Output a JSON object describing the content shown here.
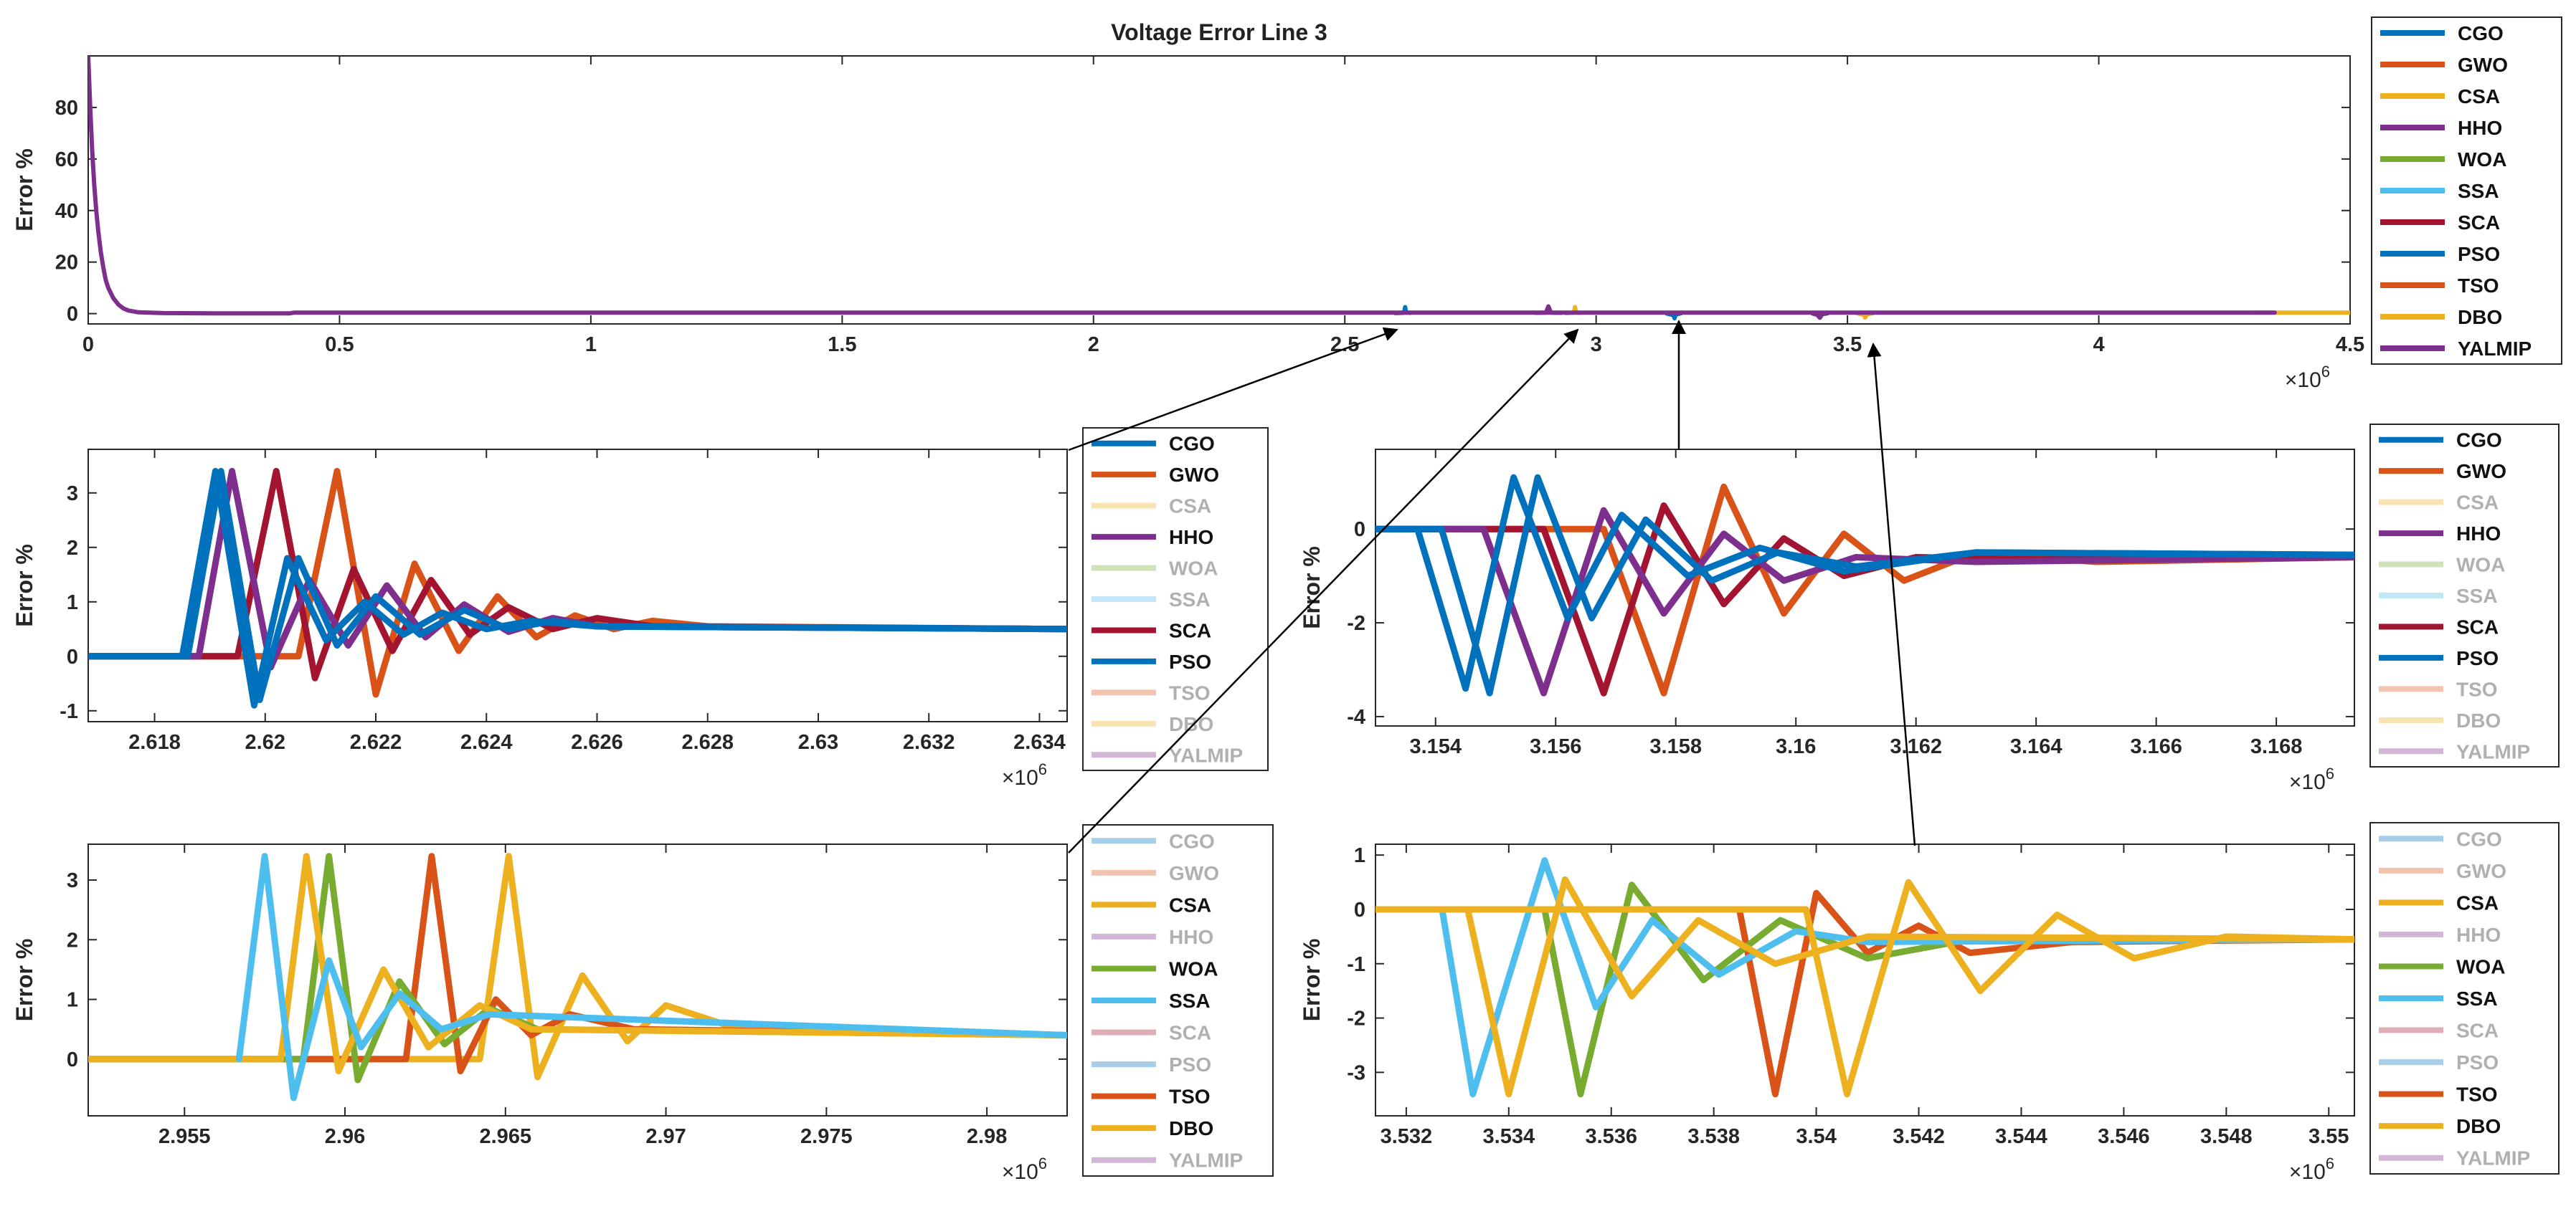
{
  "colors": {
    "CGO": "#0072BD",
    "GWO": "#D95319",
    "CSA": "#EDB120",
    "HHO": "#7E2F8E",
    "WOA": "#77AC30",
    "SSA": "#4DBEEE",
    "SCA": "#A2142F",
    "PSO": "#0072BD",
    "TSO": "#D95319",
    "DBO": "#EDB120",
    "YALMIP": "#7E2F8E"
  },
  "chart_data": [
    {
      "id": "main",
      "type": "line",
      "title": "Voltage Error Line 3",
      "xlabel": "",
      "ylabel": "Error %",
      "x_multiplier": "×10^6",
      "xlim": [
        0,
        4.5
      ],
      "ylim": [
        -4,
        100
      ],
      "xticks": [
        0,
        0.5,
        1,
        1.5,
        2,
        2.5,
        3,
        3.5,
        4,
        4.5
      ],
      "xtick_labels": [
        "0",
        "0.5",
        "1",
        "1.5",
        "2",
        "2.5",
        "3",
        "3.5",
        "4",
        "4.5"
      ],
      "yticks": [
        0,
        20,
        40,
        60,
        80
      ],
      "ytick_labels": [
        "0",
        "20",
        "40",
        "60",
        "80"
      ],
      "legend": [
        "CGO",
        "GWO",
        "CSA",
        "HHO",
        "WOA",
        "SSA",
        "SCA",
        "PSO",
        "TSO",
        "DBO",
        "YALMIP"
      ],
      "legend_dim": [],
      "legend_placement": "outside-right",
      "series": [
        {
          "name": "DBO",
          "x": [
            4.3,
            4.5
          ],
          "y": [
            0.4,
            0.4
          ]
        },
        {
          "name": "CGO",
          "x": [
            2.6,
            2.618,
            2.62,
            2.622,
            2.63
          ],
          "y": [
            0.2,
            0.3,
            2.5,
            0.4,
            0.3
          ]
        },
        {
          "name": "CSA",
          "x": [
            2.94,
            2.956,
            2.958,
            2.96,
            2.97
          ],
          "y": [
            0.2,
            0.4,
            2.5,
            0.4,
            0.3
          ]
        },
        {
          "name": "HHO",
          "x": [
            2.88,
            2.9,
            2.905,
            2.91,
            2.93
          ],
          "y": [
            0.3,
            0.4,
            2.8,
            0.4,
            0.3
          ]
        },
        {
          "name": "PSO",
          "x": [
            3.14,
            3.154,
            3.156,
            3.158,
            3.17
          ],
          "y": [
            0.1,
            -0.6,
            -1.8,
            -0.4,
            0.2
          ]
        },
        {
          "name": "YALMIP",
          "x": [
            3.43,
            3.44,
            3.445,
            3.45,
            3.46
          ],
          "y": [
            0.1,
            -0.5,
            -1.6,
            -0.2,
            0.1
          ]
        },
        {
          "name": "DBO",
          "x": [
            3.52,
            3.534,
            3.535,
            3.54,
            3.55
          ],
          "y": [
            0.1,
            -0.5,
            -1.5,
            -0.2,
            0.1
          ]
        },
        {
          "name": "YALMIP",
          "x": [
            0,
            0.004,
            0.008,
            0.012,
            0.016,
            0.02,
            0.025,
            0.03,
            0.035,
            0.04,
            0.05,
            0.06,
            0.07,
            0.08,
            0.1,
            0.15,
            0.25,
            0.4,
            0.41,
            1,
            2,
            3,
            4,
            4.35
          ],
          "y": [
            100,
            80,
            63,
            50,
            40,
            32,
            24,
            18,
            13,
            10,
            6,
            3.5,
            2,
            1.2,
            0.5,
            0.2,
            0.1,
            0.1,
            0.4,
            0.4,
            0.4,
            0.4,
            0.4,
            0.4
          ]
        }
      ]
    },
    {
      "id": "z1",
      "type": "line",
      "title": "",
      "xlabel": "",
      "ylabel": "Error %",
      "x_multiplier": "×10^6",
      "xlim": [
        2.6168,
        2.6345
      ],
      "ylim": [
        -1.2,
        3.8
      ],
      "xticks": [
        2.618,
        2.62,
        2.622,
        2.624,
        2.626,
        2.628,
        2.63,
        2.632,
        2.634
      ],
      "xtick_labels": [
        "2.618",
        "2.62",
        "2.622",
        "2.624",
        "2.626",
        "2.628",
        "2.63",
        "2.632",
        "2.634"
      ],
      "yticks": [
        -1,
        0,
        1,
        2,
        3
      ],
      "ytick_labels": [
        "-1",
        "0",
        "1",
        "2",
        "3"
      ],
      "legend": [
        "CGO",
        "GWO",
        "CSA",
        "HHO",
        "WOA",
        "SSA",
        "SCA",
        "PSO",
        "TSO",
        "DBO",
        "YALMIP"
      ],
      "legend_dim": [
        "CSA",
        "WOA",
        "SSA",
        "TSO",
        "DBO",
        "YALMIP"
      ],
      "legend_placement": "outside-right",
      "series": [
        {
          "name": "GWO",
          "x": [
            2.6168,
            2.6206,
            2.6213,
            2.622,
            2.6227,
            2.6235,
            2.6242,
            2.6249,
            2.6256,
            2.6263,
            2.627,
            2.628,
            2.6345
          ],
          "y": [
            0,
            0,
            3.4,
            -0.7,
            1.7,
            0.1,
            1.1,
            0.35,
            0.75,
            0.5,
            0.65,
            0.55,
            0.5
          ]
        },
        {
          "name": "SCA",
          "x": [
            2.6168,
            2.6195,
            2.6202,
            2.6209,
            2.6216,
            2.6223,
            2.623,
            2.6237,
            2.6244,
            2.6252,
            2.626,
            2.627,
            2.6345
          ],
          "y": [
            0,
            0,
            3.4,
            -0.4,
            1.6,
            0.1,
            1.4,
            0.4,
            0.9,
            0.5,
            0.7,
            0.55,
            0.5
          ]
        },
        {
          "name": "HHO",
          "x": [
            2.6168,
            2.6188,
            2.6194,
            2.6201,
            2.6208,
            2.6215,
            2.6222,
            2.6229,
            2.6236,
            2.6244,
            2.6252,
            2.626,
            2.6345
          ],
          "y": [
            0,
            0,
            3.4,
            -0.2,
            1.4,
            0.2,
            1.3,
            0.35,
            0.95,
            0.45,
            0.7,
            0.55,
            0.5
          ]
        },
        {
          "name": "PSO",
          "x": [
            2.6168,
            2.6186,
            2.6192,
            2.6199,
            2.6206,
            2.6213,
            2.622,
            2.6228,
            2.6236,
            2.6244,
            2.6252,
            2.626,
            2.6345
          ],
          "y": [
            0,
            0,
            3.4,
            -0.8,
            1.8,
            0.2,
            1.1,
            0.4,
            0.85,
            0.5,
            0.65,
            0.55,
            0.5
          ]
        },
        {
          "name": "CGO",
          "x": [
            2.6168,
            2.6185,
            2.6191,
            2.6198,
            2.6204,
            2.6211,
            2.6218,
            2.6225,
            2.6232,
            2.624,
            2.6248,
            2.626,
            2.6345
          ],
          "y": [
            0,
            0,
            3.4,
            -0.9,
            1.8,
            0.3,
            1.0,
            0.4,
            0.8,
            0.5,
            0.65,
            0.55,
            0.5
          ]
        }
      ]
    },
    {
      "id": "z2",
      "type": "line",
      "title": "",
      "xlabel": "",
      "ylabel": "Error %",
      "x_multiplier": "×10^6",
      "xlim": [
        3.153,
        3.1693
      ],
      "ylim": [
        -4.2,
        1.7
      ],
      "xticks": [
        3.154,
        3.156,
        3.158,
        3.16,
        3.162,
        3.164,
        3.166,
        3.168
      ],
      "xtick_labels": [
        "3.154",
        "3.156",
        "3.158",
        "3.16",
        "3.162",
        "3.164",
        "3.166",
        "3.168"
      ],
      "yticks": [
        -4,
        -2,
        0
      ],
      "ytick_labels": [
        "-4",
        "-2",
        "0"
      ],
      "legend": [
        "CGO",
        "GWO",
        "CSA",
        "HHO",
        "WOA",
        "SSA",
        "SCA",
        "PSO",
        "TSO",
        "DBO",
        "YALMIP"
      ],
      "legend_dim": [
        "CSA",
        "WOA",
        "SSA",
        "TSO",
        "DBO",
        "YALMIP"
      ],
      "legend_placement": "outside-right",
      "series": [
        {
          "name": "GWO",
          "x": [
            3.153,
            3.1568,
            3.1578,
            3.1588,
            3.1598,
            3.1608,
            3.1618,
            3.163,
            3.165,
            3.1693
          ],
          "y": [
            0,
            0,
            -3.5,
            0.9,
            -1.8,
            -0.1,
            -1.1,
            -0.5,
            -0.7,
            -0.6
          ]
        },
        {
          "name": "SCA",
          "x": [
            3.153,
            3.1558,
            3.1568,
            3.1578,
            3.1588,
            3.1598,
            3.1608,
            3.162,
            3.164,
            3.1693
          ],
          "y": [
            0,
            0,
            -3.5,
            0.5,
            -1.6,
            -0.2,
            -1.0,
            -0.6,
            -0.65,
            -0.6
          ]
        },
        {
          "name": "HHO",
          "x": [
            3.153,
            3.1548,
            3.1558,
            3.1568,
            3.1578,
            3.1588,
            3.1598,
            3.161,
            3.163,
            3.1693
          ],
          "y": [
            0,
            0,
            -3.5,
            0.4,
            -1.8,
            -0.1,
            -1.1,
            -0.6,
            -0.7,
            -0.6
          ]
        },
        {
          "name": "CGO",
          "x": [
            3.153,
            3.1541,
            3.1549,
            3.1557,
            3.1566,
            3.1575,
            3.1586,
            3.1597,
            3.161,
            3.163,
            3.1693
          ],
          "y": [
            0,
            0,
            -3.5,
            1.1,
            -1.9,
            0.2,
            -1.1,
            -0.5,
            -0.8,
            -0.5,
            -0.55
          ]
        },
        {
          "name": "PSO",
          "x": [
            3.153,
            3.1537,
            3.1545,
            3.1553,
            3.1562,
            3.1571,
            3.1582,
            3.1594,
            3.1608,
            3.163,
            3.1693
          ],
          "y": [
            0,
            0,
            -3.4,
            1.1,
            -1.9,
            0.3,
            -1.0,
            -0.4,
            -0.9,
            -0.5,
            -0.55
          ]
        }
      ]
    },
    {
      "id": "z3",
      "type": "line",
      "title": "",
      "xlabel": "",
      "ylabel": "Error %",
      "x_multiplier": "×10^6",
      "xlim": [
        2.952,
        2.9825
      ],
      "ylim": [
        -0.95,
        3.6
      ],
      "xticks": [
        2.955,
        2.96,
        2.965,
        2.97,
        2.975,
        2.98
      ],
      "xtick_labels": [
        "2.955",
        "2.96",
        "2.965",
        "2.97",
        "2.975",
        "2.98"
      ],
      "yticks": [
        0,
        1,
        2,
        3
      ],
      "ytick_labels": [
        "0",
        "1",
        "2",
        "3"
      ],
      "legend": [
        "CGO",
        "GWO",
        "CSA",
        "HHO",
        "WOA",
        "SSA",
        "SCA",
        "PSO",
        "TSO",
        "DBO",
        "YALMIP"
      ],
      "legend_dim": [
        "CGO",
        "GWO",
        "HHO",
        "SCA",
        "PSO",
        "YALMIP"
      ],
      "legend_placement": "outside-right",
      "series": [
        {
          "name": "DBO",
          "x": [
            2.952,
            2.9642,
            2.9651,
            2.966,
            2.9674,
            2.9688,
            2.97,
            2.972,
            2.9825
          ],
          "y": [
            0,
            0,
            3.4,
            -0.3,
            1.4,
            0.3,
            0.9,
            0.55,
            0.4
          ]
        },
        {
          "name": "TSO",
          "x": [
            2.952,
            2.9619,
            2.9627,
            2.9636,
            2.9647,
            2.9658,
            2.967,
            2.969,
            2.9825
          ],
          "y": [
            0,
            0,
            3.4,
            -0.2,
            1.0,
            0.4,
            0.75,
            0.5,
            0.4
          ]
        },
        {
          "name": "WOA",
          "x": [
            2.952,
            2.9587,
            2.9595,
            2.9604,
            2.9617,
            2.9631,
            2.9645,
            2.966,
            2.9825
          ],
          "y": [
            0,
            0,
            3.4,
            -0.35,
            1.3,
            0.25,
            0.85,
            0.5,
            0.4
          ]
        },
        {
          "name": "CSA",
          "x": [
            2.952,
            2.958,
            2.9588,
            2.9598,
            2.9612,
            2.9626,
            2.9642,
            2.9658,
            2.9825
          ],
          "y": [
            0,
            0,
            3.4,
            -0.2,
            1.5,
            0.2,
            0.9,
            0.5,
            0.4
          ]
        },
        {
          "name": "SSA",
          "x": [
            2.9567,
            2.9575,
            2.9584,
            2.9595,
            2.9605,
            2.9617,
            2.963,
            2.9645,
            2.9825
          ],
          "y": [
            0,
            3.4,
            -0.65,
            1.65,
            0.2,
            1.1,
            0.5,
            0.75,
            0.4
          ]
        }
      ]
    },
    {
      "id": "z4",
      "type": "line",
      "title": "",
      "xlabel": "",
      "ylabel": "Error %",
      "x_multiplier": "×10^6",
      "xlim": [
        3.5314,
        3.5505
      ],
      "ylim": [
        -3.8,
        1.2
      ],
      "xticks": [
        3.532,
        3.534,
        3.536,
        3.538,
        3.54,
        3.542,
        3.544,
        3.546,
        3.548,
        3.55
      ],
      "xtick_labels": [
        "3.532",
        "3.534",
        "3.536",
        "3.538",
        "3.54",
        "3.542",
        "3.544",
        "3.546",
        "3.548",
        "3.55"
      ],
      "yticks": [
        -3,
        -2,
        -1,
        0,
        1
      ],
      "ytick_labels": [
        "-3",
        "-2",
        "-1",
        "0",
        "1"
      ],
      "legend": [
        "CGO",
        "GWO",
        "CSA",
        "HHO",
        "WOA",
        "SSA",
        "SCA",
        "PSO",
        "TSO",
        "DBO",
        "YALMIP"
      ],
      "legend_dim": [
        "CGO",
        "GWO",
        "HHO",
        "SCA",
        "PSO",
        "YALMIP"
      ],
      "legend_placement": "outside-right",
      "series": [
        {
          "name": "TSO",
          "x": [
            3.5314,
            3.5385,
            3.5392,
            3.54,
            3.541,
            3.542,
            3.543,
            3.545,
            3.5505
          ],
          "y": [
            0,
            0,
            -3.4,
            0.3,
            -0.8,
            -0.3,
            -0.8,
            -0.6,
            -0.55
          ]
        },
        {
          "name": "WOA",
          "x": [
            3.5314,
            3.5347,
            3.5354,
            3.5364,
            3.5378,
            3.5393,
            3.541,
            3.543,
            3.5505
          ],
          "y": [
            0,
            0,
            -3.4,
            0.45,
            -1.3,
            -0.2,
            -0.9,
            -0.55,
            -0.55
          ]
        },
        {
          "name": "SSA",
          "x": [
            3.5327,
            3.5333,
            3.5347,
            3.5357,
            3.5368,
            3.5381,
            3.5396,
            3.541,
            3.5505
          ],
          "y": [
            0,
            -3.4,
            0.9,
            -1.8,
            -0.2,
            -1.2,
            -0.4,
            -0.6,
            -0.55
          ]
        },
        {
          "name": "CSA",
          "x": [
            3.5314,
            3.5332,
            3.534,
            3.5351,
            3.5364,
            3.5377,
            3.5392,
            3.541,
            3.5505
          ],
          "y": [
            0,
            0,
            -3.4,
            0.55,
            -1.6,
            -0.2,
            -1.0,
            -0.5,
            -0.55
          ]
        },
        {
          "name": "DBO",
          "x": [
            3.5314,
            3.5398,
            3.5406,
            3.5418,
            3.5432,
            3.5447,
            3.5462,
            3.548,
            3.5505
          ],
          "y": [
            0,
            0,
            -3.4,
            0.5,
            -1.5,
            -0.1,
            -0.9,
            -0.5,
            -0.55
          ]
        }
      ]
    }
  ]
}
